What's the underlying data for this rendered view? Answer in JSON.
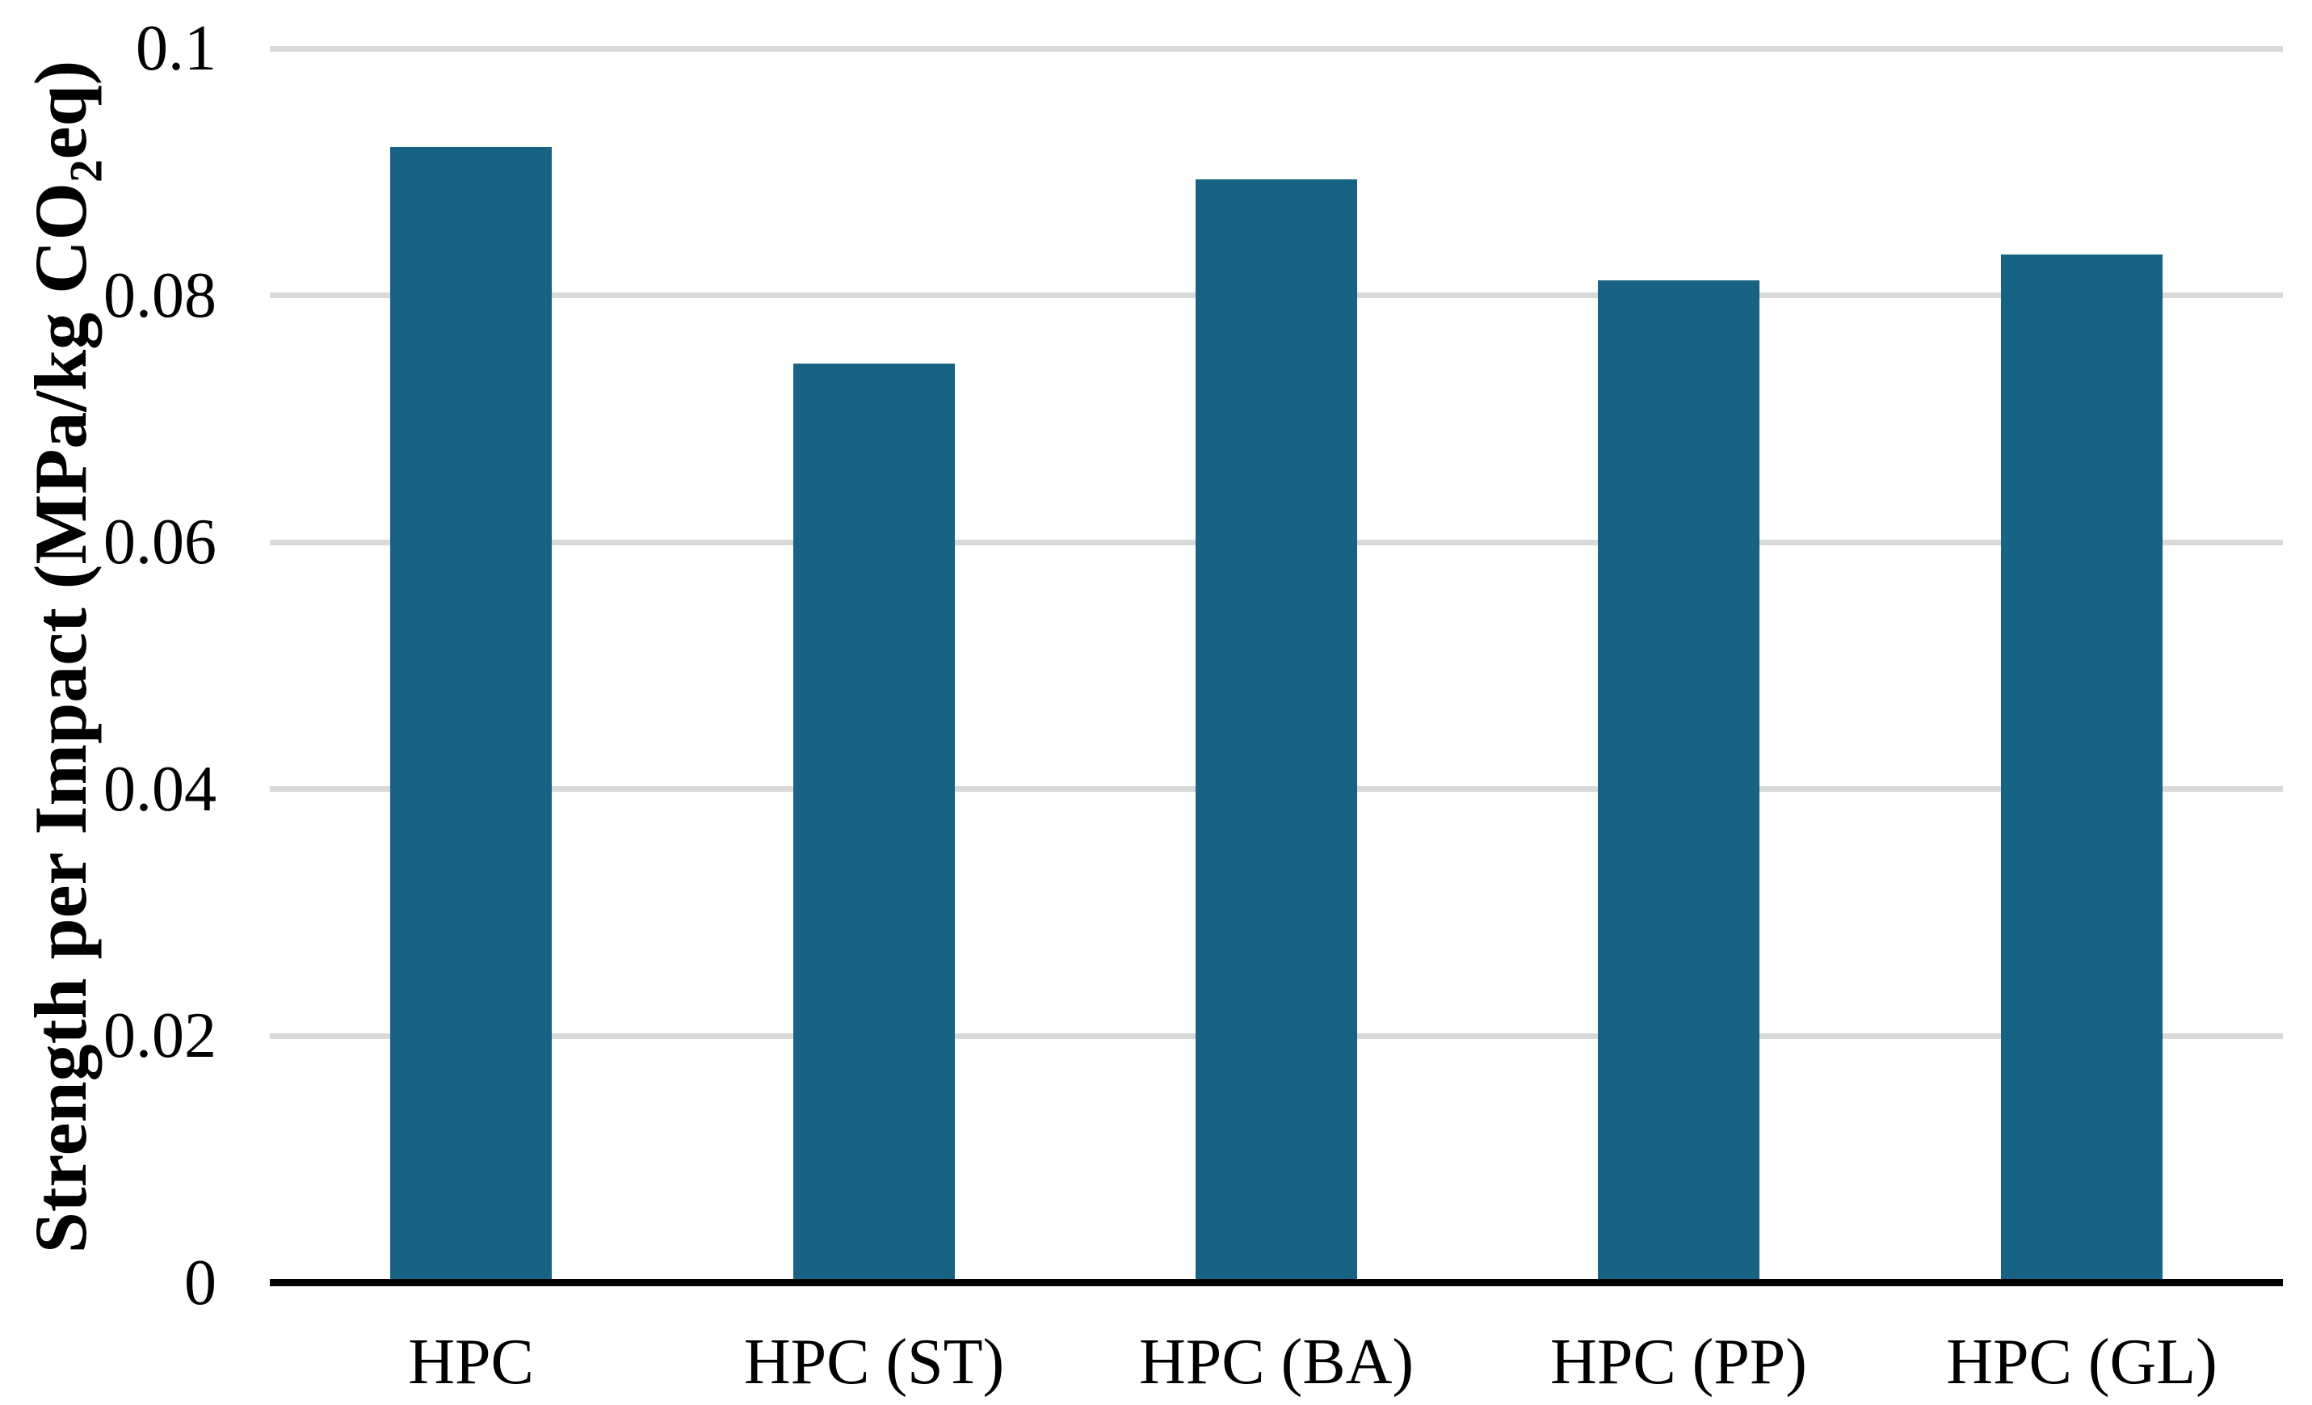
{
  "chart_data": {
    "type": "bar",
    "title": "",
    "xlabel": "",
    "ylabel": "Strength per Impact (MPa/kg CO2eq)",
    "ylabel_parts": {
      "prefix": "Strength per Impact (MPa/kg CO",
      "subscript": "2",
      "suffix": "eq)"
    },
    "categories": [
      "HPC",
      "HPC (ST)",
      "HPC (BA)",
      "HPC (PP)",
      "HPC (GL)"
    ],
    "values": [
      0.092,
      0.0745,
      0.0894,
      0.0812,
      0.0833
    ],
    "ylim": [
      0,
      0.1
    ],
    "yticks": [
      {
        "label": "0",
        "value": 0
      },
      {
        "label": "0.02",
        "value": 0.02
      },
      {
        "label": "0.04",
        "value": 0.04
      },
      {
        "label": "0.06",
        "value": 0.06
      },
      {
        "label": "0.08",
        "value": 0.08
      },
      {
        "label": "0.1",
        "value": 0.1
      }
    ],
    "grid": true,
    "legend_position": "none",
    "colors": {
      "bar": "#186284",
      "gridline": "#D9D9D9",
      "axis": "#000000",
      "background": "#FFFFFF",
      "text": "#000000"
    }
  }
}
